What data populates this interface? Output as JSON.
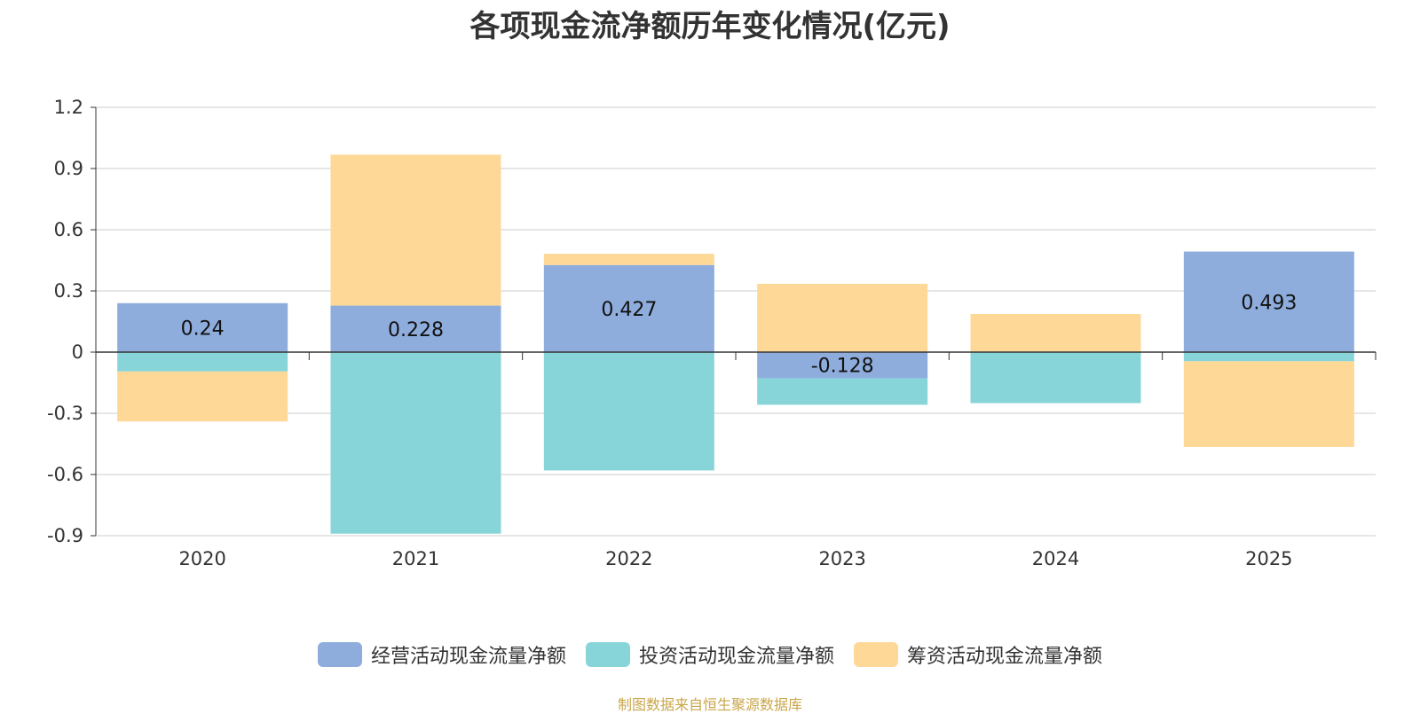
{
  "title": "各项现金流净额历年变化情况(亿元)",
  "source": "制图数据来自恒生聚源数据库",
  "colors": {
    "operating": "#8eaddc",
    "investing": "#87d5d9",
    "financing": "#fed897",
    "axis": "#333333",
    "grid": "#cccccc"
  },
  "chart_data": {
    "type": "bar",
    "stacked": true,
    "categories": [
      "2020",
      "2021",
      "2022",
      "2023",
      "2024",
      "2025"
    ],
    "ylim": [
      -0.9,
      1.2
    ],
    "yticks": [
      "1.2",
      "0.9",
      "0.6",
      "0.3",
      "0",
      "-0.3",
      "-0.6",
      "-0.9"
    ],
    "grid": true,
    "legend_position": "bottom",
    "series": [
      {
        "name": "经营活动现金流量净额",
        "color": "#8eaddc",
        "values": [
          0.24,
          0.228,
          0.427,
          -0.128,
          0.002,
          0.493
        ],
        "labels": [
          "0.24",
          "0.228",
          "0.427",
          "-0.128",
          "",
          "0.493"
        ]
      },
      {
        "name": "投资活动现金流量净额",
        "color": "#87d5d9",
        "values": [
          -0.095,
          -0.89,
          -0.58,
          -0.13,
          -0.25,
          -0.045
        ]
      },
      {
        "name": "筹资活动现金流量净额",
        "color": "#fed897",
        "values": [
          -0.245,
          0.74,
          0.055,
          0.335,
          0.185,
          -0.42
        ]
      }
    ]
  }
}
